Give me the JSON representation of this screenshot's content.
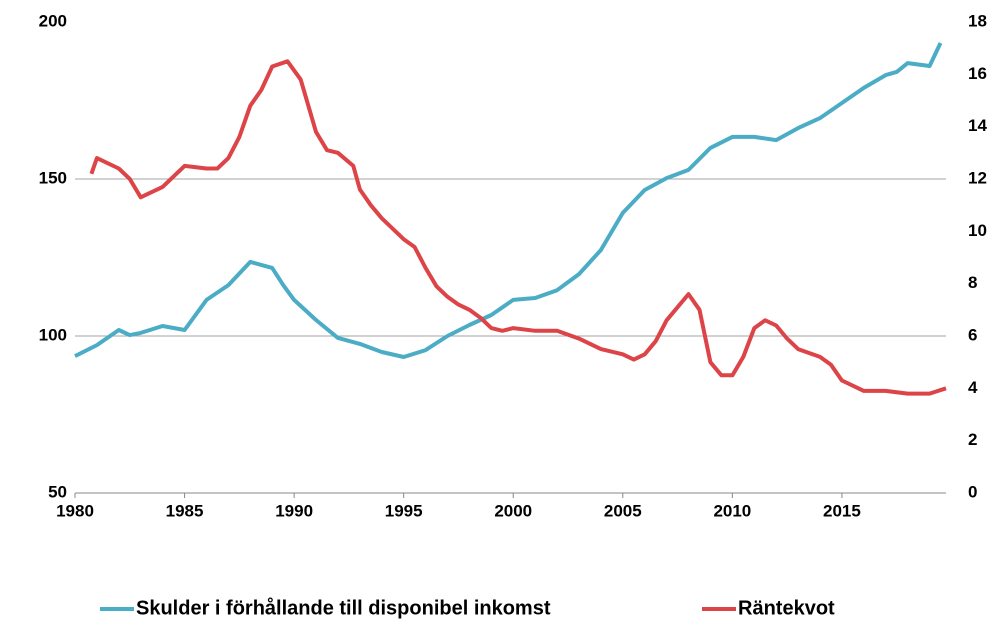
{
  "chart_data": {
    "type": "line",
    "xlim": [
      1980,
      2019.75
    ],
    "xticks": [
      1980,
      1985,
      1990,
      1995,
      2000,
      2005,
      2010,
      2015
    ],
    "ylim": [
      50,
      200
    ],
    "yticks": [
      50,
      100,
      150,
      200
    ],
    "y2lim": [
      0,
      18
    ],
    "y2ticks": [
      0,
      2,
      4,
      6,
      8,
      10,
      12,
      14,
      16,
      18
    ],
    "grid": true,
    "legend": "bottom",
    "series": [
      {
        "name": "Skulder i förhållande till disponibel inkomst",
        "color": "#4bacc6",
        "x": [
          1980,
          1981,
          1982,
          1982.5,
          1983,
          1984,
          1985,
          1986,
          1987,
          1988,
          1989,
          1989.5,
          1990,
          1991,
          1992,
          1993,
          1994,
          1995,
          1996,
          1997,
          1998,
          1999,
          2000,
          2001,
          2002,
          2003,
          2004,
          2005,
          2006,
          2007,
          2008,
          2009,
          2010,
          2011,
          2012,
          2013,
          2014,
          2015,
          2016,
          2017,
          2017.5,
          2018,
          2019,
          2019.5
        ],
        "values": [
          93.6,
          97.1,
          101.9,
          100.3,
          101,
          103.2,
          101.9,
          111.5,
          116.2,
          123.6,
          121.7,
          116.2,
          111.5,
          105.1,
          99.4,
          97.5,
          94.9,
          93.3,
          95.5,
          100,
          103.5,
          106.7,
          111.5,
          112.1,
          114.6,
          119.7,
          127.4,
          139.2,
          146.5,
          150.3,
          152.9,
          159.9,
          163.4,
          163.4,
          162.4,
          166.2,
          169.4,
          174.2,
          179,
          183.1,
          184.1,
          186.9,
          186,
          193.3
        ]
      },
      {
        "name": "Räntekvot",
        "color": "#dc4447",
        "axis": "y2",
        "x": [
          1980.75,
          1981,
          1982,
          1982.5,
          1983,
          1984,
          1985,
          1986,
          1986.5,
          1987,
          1987.5,
          1988,
          1988.5,
          1989,
          1989.7,
          1990.3,
          1991,
          1991.5,
          1992,
          1992.7,
          1993,
          1993.5,
          1994,
          1995,
          1995.5,
          1996,
          1996.5,
          1997,
          1997.5,
          1998,
          1998.5,
          1999,
          1999.5,
          2000,
          2001,
          2002,
          2003,
          2004,
          2005,
          2005.5,
          2006,
          2006.5,
          2007,
          2008,
          2008.5,
          2009,
          2009.5,
          2010,
          2010.5,
          2011,
          2011.5,
          2012,
          2012.5,
          2013,
          2014,
          2014.5,
          2015,
          2016,
          2017,
          2018,
          2019,
          2019.75
        ],
        "values": [
          12.2,
          12.8,
          12.4,
          12.0,
          11.3,
          11.7,
          12.5,
          12.4,
          12.4,
          12.8,
          13.6,
          14.8,
          15.4,
          16.3,
          16.5,
          15.8,
          13.8,
          13.1,
          13.0,
          12.5,
          11.6,
          11.0,
          10.5,
          9.7,
          9.4,
          8.6,
          7.9,
          7.5,
          7.2,
          7.0,
          6.7,
          6.3,
          6.2,
          6.3,
          6.2,
          6.2,
          5.9,
          5.5,
          5.3,
          5.1,
          5.3,
          5.8,
          6.6,
          7.6,
          7.0,
          5.0,
          4.5,
          4.5,
          5.2,
          6.3,
          6.6,
          6.4,
          5.9,
          5.5,
          5.2,
          4.9,
          4.3,
          3.9,
          3.9,
          3.8,
          3.8,
          4.0
        ]
      }
    ]
  }
}
